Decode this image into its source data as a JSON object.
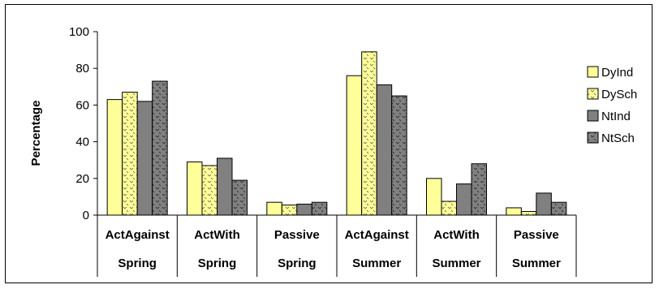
{
  "chart_data": {
    "type": "bar",
    "categories": [
      {
        "top": "ActAgainst",
        "bottom": "Spring"
      },
      {
        "top": "ActWith",
        "bottom": "Spring"
      },
      {
        "top": "Passive",
        "bottom": "Spring"
      },
      {
        "top": "ActAgainst",
        "bottom": "Summer"
      },
      {
        "top": "ActWith",
        "bottom": "Summer"
      },
      {
        "top": "Passive",
        "bottom": "Summer"
      }
    ],
    "series": [
      {
        "name": "DyInd",
        "values": [
          63,
          29,
          7,
          76,
          20,
          4
        ]
      },
      {
        "name": "DySch",
        "values": [
          67,
          27,
          5.5,
          89,
          7.5,
          2
        ]
      },
      {
        "name": "NtInd",
        "values": [
          62,
          31,
          6,
          71,
          17,
          12
        ]
      },
      {
        "name": "NtSch",
        "values": [
          73,
          19,
          7,
          65,
          28,
          7
        ]
      }
    ],
    "ylabel": "Percentage",
    "ylim": [
      0,
      100
    ],
    "yticks": [
      "0",
      "20",
      "40",
      "60",
      "80",
      "100"
    ],
    "legend_position": "right",
    "grid": false,
    "colors": {
      "DyInd": "#ffff99",
      "DySch": "#ffff99",
      "NtInd": "#808080",
      "NtSch": "#808080"
    }
  }
}
